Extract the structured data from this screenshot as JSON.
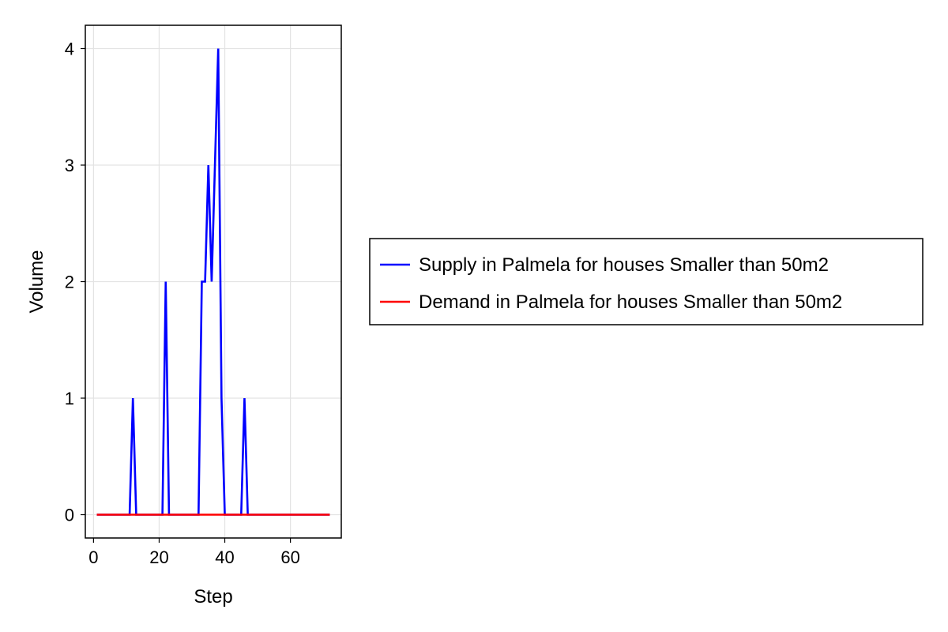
{
  "chart_data": {
    "type": "line",
    "title": "",
    "xlabel": "Step",
    "ylabel": "Volume",
    "xlim": [
      -2.5,
      75.5
    ],
    "ylim": [
      -0.2,
      4.2
    ],
    "xticks": [
      0,
      20,
      40,
      60
    ],
    "yticks": [
      0,
      1,
      2,
      3,
      4
    ],
    "grid": true,
    "legend_position": "right",
    "series": [
      {
        "name": "Supply in Palmela for houses Smaller than 50m2",
        "color": "#0000ff",
        "x": [
          1,
          2,
          3,
          4,
          5,
          6,
          7,
          8,
          9,
          10,
          11,
          12,
          13,
          14,
          15,
          16,
          17,
          18,
          19,
          20,
          21,
          22,
          23,
          24,
          25,
          26,
          27,
          28,
          29,
          30,
          31,
          32,
          33,
          34,
          35,
          36,
          37,
          38,
          39,
          40,
          41,
          42,
          43,
          44,
          45,
          46,
          47,
          48,
          49,
          50,
          51,
          52,
          53,
          54,
          55,
          56,
          57,
          58,
          59,
          60,
          61,
          62,
          63,
          64,
          65,
          66,
          67,
          68,
          69,
          70,
          71,
          72
        ],
        "y": [
          0,
          0,
          0,
          0,
          0,
          0,
          0,
          0,
          0,
          0,
          0,
          1,
          0,
          0,
          0,
          0,
          0,
          0,
          0,
          0,
          0,
          2,
          0,
          0,
          0,
          0,
          0,
          0,
          0,
          0,
          0,
          0,
          2,
          2,
          3,
          2,
          3,
          4,
          1,
          0,
          0,
          0,
          0,
          0,
          0,
          1,
          0,
          0,
          0,
          0,
          0,
          0,
          0,
          0,
          0,
          0,
          0,
          0,
          0,
          0,
          0,
          0,
          0,
          0,
          0,
          0,
          0,
          0,
          0,
          0,
          0,
          0
        ]
      },
      {
        "name": "Demand in Palmela for houses Smaller than 50m2",
        "color": "#ff0000",
        "x": [
          1,
          72
        ],
        "y": [
          0,
          0
        ]
      }
    ]
  }
}
